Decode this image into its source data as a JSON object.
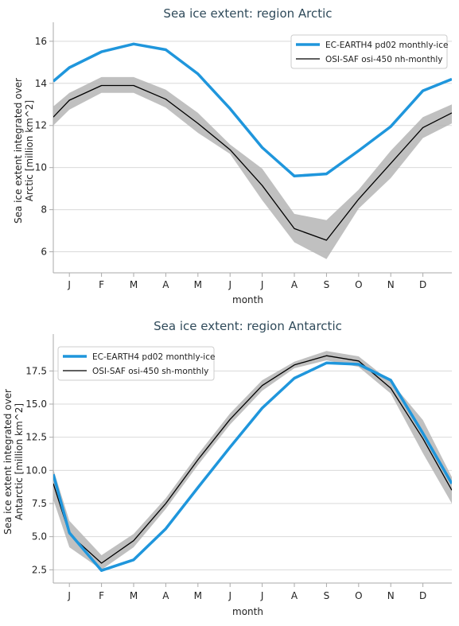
{
  "chart_data": [
    {
      "type": "line",
      "title": "Sea ice extent: region Arctic",
      "xlabel": "month",
      "ylabel": "Sea ice extent integrated over Arctic [million km^2]",
      "ylabel_lines": [
        "Sea ice extent integrated over",
        "Arctic [million km^2]"
      ],
      "categories": [
        "J",
        "F",
        "M",
        "A",
        "M",
        "J",
        "J",
        "A",
        "S",
        "O",
        "N",
        "D"
      ],
      "ylim": [
        5.0,
        16.6
      ],
      "yticks": [
        6,
        8,
        10,
        12,
        14,
        16
      ],
      "ytick_labels": [
        "6",
        "8",
        "10",
        "12",
        "14",
        "16"
      ],
      "grid": true,
      "legend_position": "top-right",
      "series": [
        {
          "name": "EC-EARTH4 pd02 monthly-ice",
          "color": "#1f96dc",
          "values": [
            14.75,
            15.5,
            15.87,
            15.6,
            14.45,
            12.8,
            10.95,
            9.6,
            9.7,
            10.8,
            11.95,
            13.65
          ],
          "edge": [
            14.1,
            14.2
          ]
        },
        {
          "name": "OSI-SAF osi-450 nh-monthly",
          "color": "#000000",
          "values": [
            13.2,
            13.9,
            13.9,
            13.25,
            12.1,
            10.85,
            9.15,
            7.1,
            6.55,
            8.5,
            10.2,
            11.9
          ],
          "lower": [
            12.75,
            13.55,
            13.55,
            12.85,
            11.65,
            10.65,
            8.45,
            6.45,
            5.65,
            8.05,
            9.5,
            11.4
          ],
          "upper": [
            13.55,
            14.3,
            14.3,
            13.7,
            12.6,
            11.1,
            9.95,
            7.8,
            7.5,
            8.95,
            10.8,
            12.4
          ],
          "edge": [
            12.4,
            12.6
          ],
          "edge_lower": [
            12.0,
            12.1
          ],
          "edge_upper": [
            12.9,
            13.0
          ]
        }
      ]
    },
    {
      "type": "line",
      "title": "Sea ice extent: region Antarctic",
      "xlabel": "month",
      "ylabel": "Sea ice extent integrated over Antarctic [million km^2]",
      "ylabel_lines": [
        "Sea ice extent integrated over",
        "Antarctic [million km^2]"
      ],
      "categories": [
        "J",
        "F",
        "M",
        "A",
        "M",
        "J",
        "J",
        "A",
        "S",
        "O",
        "N",
        "D"
      ],
      "ylim": [
        1.5,
        19.8
      ],
      "yticks": [
        2.5,
        5.0,
        7.5,
        10.0,
        12.5,
        15.0,
        17.5
      ],
      "ytick_labels": [
        "2.5",
        "5.0",
        "7.5",
        "10.0",
        "12.5",
        "15.0",
        "17.5"
      ],
      "grid": true,
      "legend_position": "top-left",
      "series": [
        {
          "name": "EC-EARTH4 pd02 monthly-ice",
          "color": "#1f96dc",
          "values": [
            5.3,
            2.45,
            3.25,
            5.6,
            8.7,
            11.75,
            14.7,
            16.95,
            18.1,
            18.0,
            16.8,
            12.8
          ],
          "edge": [
            9.7,
            9.0
          ]
        },
        {
          "name": "OSI-SAF osi-450 sh-monthly",
          "color": "#000000",
          "values": [
            5.2,
            3.0,
            4.7,
            7.5,
            10.8,
            13.85,
            16.4,
            17.95,
            18.65,
            18.25,
            16.2,
            12.4
          ],
          "lower": [
            4.2,
            2.5,
            4.2,
            7.1,
            10.4,
            13.45,
            16.0,
            17.7,
            18.3,
            17.8,
            15.8,
            11.3
          ],
          "upper": [
            6.2,
            3.6,
            5.2,
            7.9,
            11.2,
            14.3,
            16.8,
            18.2,
            19.0,
            18.6,
            16.7,
            13.8
          ],
          "edge": [
            9.0,
            8.5
          ],
          "edge_lower": [
            7.8,
            7.5
          ],
          "edge_upper": [
            10.1,
            9.5
          ]
        }
      ]
    }
  ]
}
